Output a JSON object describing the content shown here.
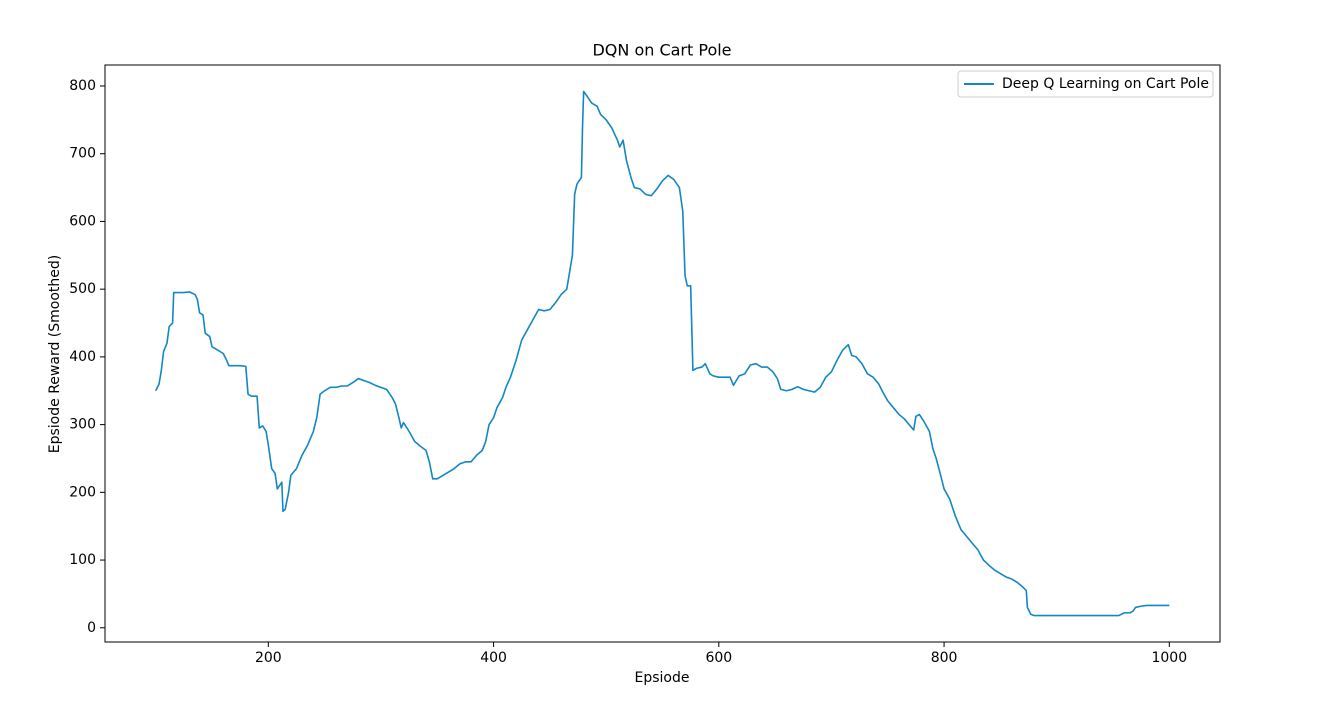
{
  "chart_data": {
    "type": "line",
    "title": "DQN on Cart Pole",
    "x_label": "Epsiode",
    "y_label": "Epsiode Reward (Smoothed)",
    "legend_position": "upper right",
    "grid": false,
    "xlim": [
      55,
      1045
    ],
    "ylim": [
      -21,
      831
    ],
    "xticks": [
      200,
      400,
      600,
      800,
      1000
    ],
    "yticks": [
      0,
      100,
      200,
      300,
      400,
      500,
      600,
      700,
      800
    ],
    "x": [
      100,
      103,
      105,
      107,
      110,
      112,
      115,
      116,
      120,
      125,
      130,
      135,
      137,
      139,
      142,
      144,
      148,
      150,
      155,
      160,
      163,
      165,
      170,
      175,
      180,
      182,
      185,
      190,
      192,
      195,
      198,
      200,
      203,
      206,
      208,
      210,
      212,
      213,
      215,
      218,
      220,
      225,
      230,
      235,
      240,
      243,
      246,
      250,
      255,
      260,
      265,
      270,
      275,
      280,
      285,
      290,
      295,
      300,
      305,
      310,
      313,
      316,
      318,
      320,
      325,
      330,
      335,
      340,
      343,
      346,
      350,
      355,
      360,
      365,
      370,
      375,
      380,
      385,
      390,
      393,
      396,
      400,
      403,
      408,
      411,
      415,
      420,
      425,
      430,
      435,
      440,
      445,
      450,
      455,
      460,
      465,
      467,
      470,
      472,
      474,
      478,
      479,
      480,
      483,
      487,
      492,
      495,
      500,
      505,
      510,
      512,
      515,
      518,
      522,
      525,
      530,
      535,
      540,
      545,
      550,
      555,
      560,
      565,
      568,
      570,
      572,
      575,
      577,
      580,
      585,
      588,
      592,
      595,
      600,
      605,
      610,
      613,
      618,
      623,
      628,
      633,
      638,
      643,
      648,
      652,
      655,
      660,
      665,
      670,
      675,
      680,
      685,
      690,
      695,
      700,
      705,
      710,
      715,
      718,
      722,
      727,
      732,
      737,
      742,
      745,
      750,
      755,
      760,
      765,
      770,
      773,
      775,
      778,
      782,
      787,
      790,
      793,
      797,
      800,
      805,
      810,
      815,
      820,
      825,
      830,
      835,
      840,
      845,
      850,
      855,
      860,
      865,
      870,
      873,
      874,
      877,
      880,
      900,
      920,
      940,
      955,
      960,
      965,
      968,
      970,
      975,
      980,
      990,
      1000
    ],
    "series": [
      {
        "name": "Deep Q Learning on Cart Pole",
        "color": "#1387c3",
        "values": [
          350,
          360,
          380,
          408,
          420,
          445,
          450,
          495,
          495,
          495,
          496,
          492,
          485,
          465,
          462,
          435,
          430,
          415,
          410,
          405,
          395,
          387,
          387,
          387,
          386,
          345,
          342,
          342,
          295,
          298,
          290,
          270,
          235,
          228,
          205,
          210,
          215,
          172,
          175,
          200,
          225,
          235,
          255,
          270,
          290,
          310,
          345,
          350,
          355,
          355,
          357,
          357,
          362,
          368,
          365,
          362,
          358,
          355,
          352,
          340,
          330,
          310,
          295,
          303,
          290,
          275,
          268,
          262,
          245,
          220,
          220,
          225,
          230,
          235,
          242,
          245,
          245,
          255,
          262,
          275,
          300,
          310,
          325,
          340,
          355,
          370,
          395,
          425,
          440,
          455,
          470,
          468,
          470,
          480,
          492,
          500,
          520,
          550,
          640,
          655,
          665,
          740,
          792,
          785,
          775,
          770,
          758,
          750,
          738,
          720,
          710,
          720,
          690,
          665,
          650,
          648,
          640,
          638,
          648,
          660,
          668,
          662,
          650,
          615,
          520,
          505,
          505,
          380,
          383,
          385,
          390,
          375,
          372,
          370,
          370,
          370,
          358,
          372,
          375,
          388,
          390,
          385,
          385,
          378,
          368,
          352,
          350,
          352,
          356,
          352,
          350,
          348,
          355,
          370,
          378,
          395,
          410,
          418,
          402,
          400,
          390,
          375,
          370,
          360,
          350,
          335,
          325,
          315,
          308,
          298,
          292,
          312,
          315,
          305,
          290,
          265,
          250,
          225,
          205,
          190,
          165,
          145,
          135,
          125,
          115,
          100,
          92,
          85,
          80,
          75,
          72,
          67,
          60,
          55,
          30,
          20,
          18,
          18,
          18,
          18,
          18,
          22,
          22,
          25,
          30,
          32,
          33,
          33,
          33
        ]
      }
    ]
  }
}
